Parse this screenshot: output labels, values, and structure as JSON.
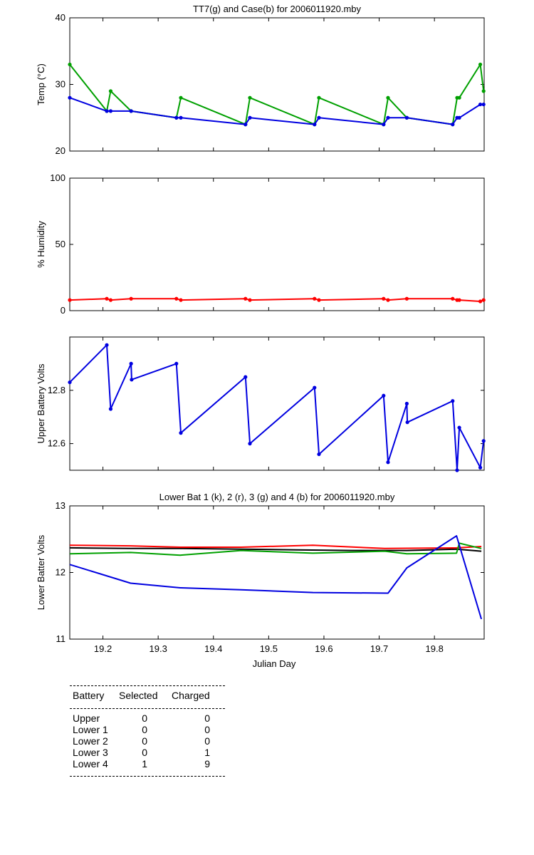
{
  "chart_data": [
    {
      "type": "line",
      "title": "TT7(g) and Case(b) for 2006011920.mby",
      "ylabel": "Temp (°C)",
      "xlabel": "",
      "xlim": [
        19.14,
        19.89
      ],
      "ylim": [
        20,
        40
      ],
      "yticks": [
        20,
        30,
        40
      ],
      "ytick_labels": [
        "20",
        "30",
        "40"
      ],
      "series": [
        {
          "name": "TT7",
          "color": "#00a000",
          "x": [
            19.14,
            19.207,
            19.214,
            19.251,
            19.333,
            19.341,
            19.458,
            19.466,
            19.583,
            19.591,
            19.708,
            19.716,
            19.75,
            19.833,
            19.841,
            19.845,
            19.883,
            19.889
          ],
          "y": [
            33,
            26,
            29,
            26,
            25,
            28,
            24,
            28,
            24,
            28,
            24,
            28,
            25,
            24,
            28,
            28,
            33,
            29
          ]
        },
        {
          "name": "Case",
          "color": "#0000e0",
          "x": [
            19.14,
            19.207,
            19.214,
            19.251,
            19.333,
            19.341,
            19.458,
            19.466,
            19.583,
            19.591,
            19.708,
            19.716,
            19.75,
            19.833,
            19.841,
            19.845,
            19.883,
            19.889
          ],
          "y": [
            28,
            26,
            26,
            26,
            25,
            25,
            24,
            25,
            24,
            25,
            24,
            25,
            25,
            24,
            25,
            25,
            27,
            27
          ]
        }
      ]
    },
    {
      "type": "line",
      "title": "",
      "ylabel": "% Humidity",
      "xlabel": "",
      "xlim": [
        19.14,
        19.89
      ],
      "ylim": [
        0,
        100
      ],
      "yticks": [
        0,
        50,
        100
      ],
      "ytick_labels": [
        "0",
        "50",
        "100"
      ],
      "series": [
        {
          "name": "Humidity",
          "color": "#ff0000",
          "x": [
            19.14,
            19.207,
            19.214,
            19.251,
            19.333,
            19.341,
            19.458,
            19.466,
            19.583,
            19.591,
            19.708,
            19.716,
            19.75,
            19.833,
            19.841,
            19.845,
            19.883,
            19.889
          ],
          "y": [
            8,
            9,
            8,
            9,
            9,
            8,
            9,
            8,
            9,
            8,
            9,
            8,
            9,
            9,
            8,
            8,
            7,
            8
          ]
        }
      ]
    },
    {
      "type": "line",
      "title": "",
      "ylabel": "Upper Battery Volts",
      "xlabel": "",
      "xlim": [
        19.14,
        19.89
      ],
      "ylim": [
        12.5,
        13.0
      ],
      "yticks": [
        12.6,
        12.8
      ],
      "ytick_labels": [
        "12.6",
        "12.8"
      ],
      "series": [
        {
          "name": "Upper",
          "color": "#0000e0",
          "x": [
            19.14,
            19.207,
            19.214,
            19.251,
            19.252,
            19.333,
            19.341,
            19.458,
            19.466,
            19.583,
            19.591,
            19.708,
            19.716,
            19.75,
            19.751,
            19.833,
            19.841,
            19.845,
            19.883,
            19.889
          ],
          "y": [
            12.83,
            12.97,
            12.73,
            12.9,
            12.84,
            12.9,
            12.64,
            12.85,
            12.6,
            12.81,
            12.56,
            12.78,
            12.53,
            12.75,
            12.68,
            12.76,
            12.5,
            12.66,
            12.51,
            12.61
          ]
        }
      ]
    },
    {
      "type": "line",
      "title": "Lower Bat 1 (k), 2 (r), 3 (g) and 4 (b) for 2006011920.mby",
      "ylabel": "Lower Batter Volts",
      "xlabel": "Julian Day",
      "xlim": [
        19.14,
        19.89
      ],
      "ylim": [
        11,
        13
      ],
      "yticks": [
        11,
        12,
        13
      ],
      "ytick_labels": [
        "11",
        "12",
        "13"
      ],
      "xticks": [
        19.2,
        19.3,
        19.4,
        19.5,
        19.6,
        19.7,
        19.8
      ],
      "xtick_labels": [
        "19.2",
        "19.3",
        "19.4",
        "19.5",
        "19.6",
        "19.7",
        "19.8"
      ],
      "series": [
        {
          "name": "Lower Bat 1",
          "color": "#000000",
          "x": [
            19.14,
            19.25,
            19.34,
            19.45,
            19.55,
            19.65,
            19.75,
            19.84,
            19.885
          ],
          "y": [
            12.37,
            12.36,
            12.36,
            12.35,
            12.34,
            12.33,
            12.33,
            12.35,
            12.32
          ]
        },
        {
          "name": "Lower Bat 2",
          "color": "#ff0000",
          "x": [
            19.14,
            19.25,
            19.34,
            19.45,
            19.58,
            19.71,
            19.84,
            19.885
          ],
          "y": [
            12.41,
            12.4,
            12.38,
            12.38,
            12.41,
            12.36,
            12.37,
            12.39
          ]
        },
        {
          "name": "Lower Bat 3",
          "color": "#00a000",
          "x": [
            19.14,
            19.25,
            19.34,
            19.45,
            19.58,
            19.71,
            19.75,
            19.84,
            19.845,
            19.885
          ],
          "y": [
            12.28,
            12.3,
            12.26,
            12.33,
            12.29,
            12.32,
            12.28,
            12.29,
            12.44,
            12.36
          ]
        },
        {
          "name": "Lower Bat 4",
          "color": "#0000e0",
          "x": [
            19.14,
            19.25,
            19.34,
            19.45,
            19.58,
            19.716,
            19.75,
            19.84,
            19.885
          ],
          "y": [
            12.12,
            11.84,
            11.77,
            11.74,
            11.7,
            11.69,
            12.07,
            12.55,
            11.3
          ]
        }
      ]
    }
  ],
  "battery_table": {
    "headers": [
      "Battery",
      "Selected",
      "Charged"
    ],
    "rows": [
      {
        "battery": "Upper",
        "selected": "0",
        "charged": "0"
      },
      {
        "battery": "Lower 1",
        "selected": "0",
        "charged": "0"
      },
      {
        "battery": "Lower 2",
        "selected": "0",
        "charged": "0"
      },
      {
        "battery": "Lower 3",
        "selected": "0",
        "charged": "1"
      },
      {
        "battery": "Lower 4",
        "selected": "1",
        "charged": "9"
      }
    ]
  }
}
